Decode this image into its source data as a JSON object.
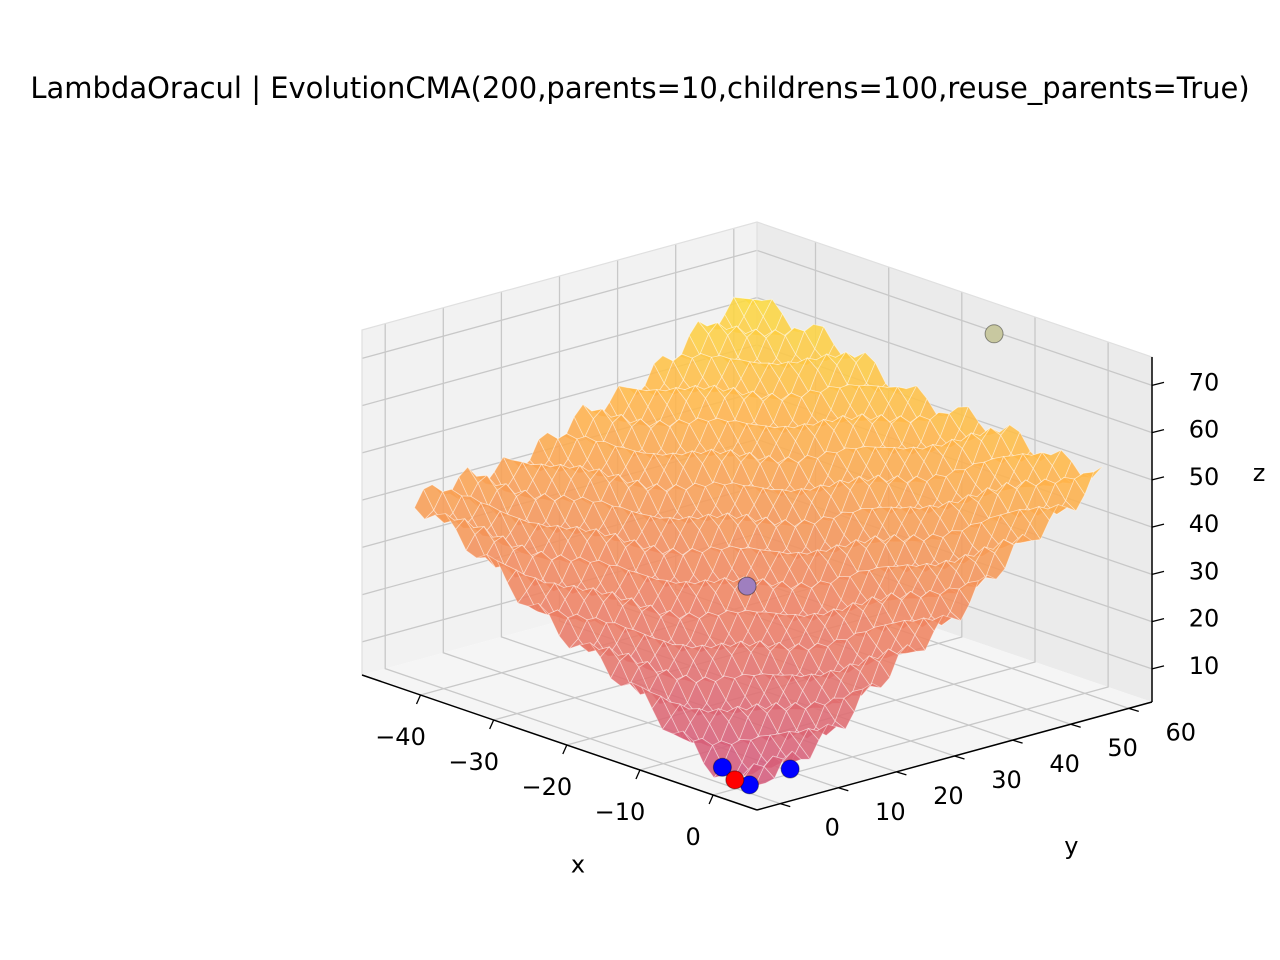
{
  "chart_data": {
    "type": "surface3d",
    "title": "LambdaOracul | EvolutionCMA(200,parents=10,childrens=100,reuse_parents=True)",
    "xlabel": "x",
    "ylabel": "y",
    "zlabel": "z",
    "xlim": [
      -48,
      6
    ],
    "ylim": [
      -4,
      64
    ],
    "zlim": [
      3,
      76
    ],
    "x_ticks": [
      -40,
      -30,
      -20,
      -10,
      0
    ],
    "x_tick_labels": [
      "−40",
      "−30",
      "−20",
      "−10",
      "0"
    ],
    "y_ticks": [
      0,
      10,
      20,
      30,
      40,
      50,
      60
    ],
    "y_tick_labels": [
      "0",
      "10",
      "20",
      "30",
      "40",
      "50",
      "60"
    ],
    "z_ticks": [
      10,
      20,
      30,
      40,
      50,
      60,
      70
    ],
    "z_tick_labels": [
      "10",
      "20",
      "30",
      "40",
      "50",
      "60",
      "70"
    ],
    "grid": true,
    "colormap": [
      "#d1577f",
      "#ee8262",
      "#ffb54a",
      "#f9f53b"
    ],
    "points": [
      {
        "x": -14,
        "y": 62,
        "z": 71,
        "color": "#c8c8a0"
      },
      {
        "x": -16,
        "y": 22,
        "z": 30,
        "color": "#9f7fbf"
      },
      {
        "x": -3.5,
        "y": 2,
        "z": 5,
        "color": "#0000ff"
      },
      {
        "x": 1,
        "y": 8,
        "z": 5,
        "color": "#0000ff"
      },
      {
        "x": 1,
        "y": 1,
        "z": 4,
        "color": "#0000ff"
      },
      {
        "x": -1,
        "y": 1,
        "z": 4,
        "color": "#ff0000"
      }
    ]
  }
}
